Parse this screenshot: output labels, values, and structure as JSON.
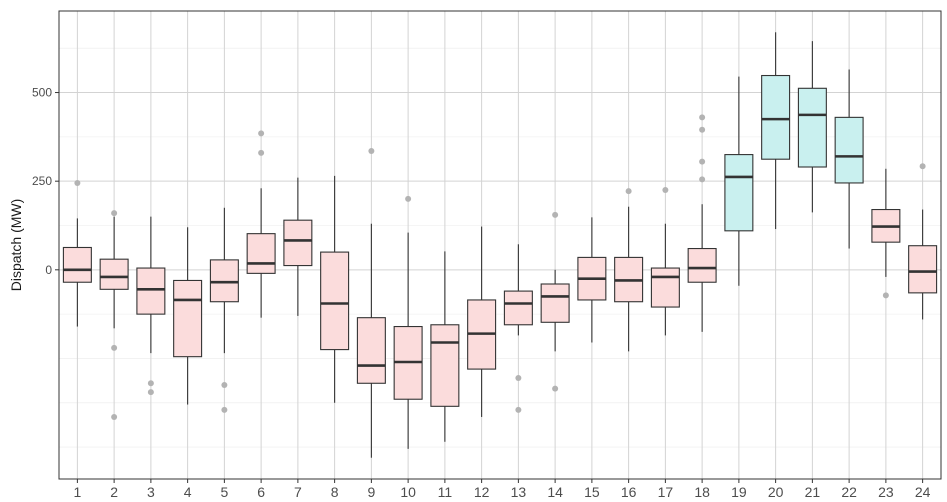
{
  "chart_data": {
    "type": "boxplot",
    "ylabel": "Dispatch (MW)",
    "xlabel": "",
    "ylim": [
      -590,
      730
    ],
    "y_ticks": [
      0,
      250,
      500
    ],
    "grid": true,
    "colors": {
      "low": "#fbdcdc",
      "high": "#c9f0ef",
      "median": "#333333",
      "outlier": "#b3b3b3",
      "panel_border": "#333333"
    },
    "categories": [
      "1",
      "2",
      "3",
      "4",
      "5",
      "6",
      "7",
      "8",
      "9",
      "10",
      "11",
      "12",
      "13",
      "14",
      "15",
      "16",
      "17",
      "18",
      "19",
      "20",
      "21",
      "22",
      "23",
      "24"
    ],
    "boxes": [
      {
        "x": "1",
        "whisker_low": -160,
        "q1": -35,
        "median": 0,
        "q3": 63,
        "whisker_high": 145,
        "outliers": [
          245
        ],
        "fill": "low"
      },
      {
        "x": "2",
        "whisker_low": -165,
        "q1": -55,
        "median": -20,
        "q3": 30,
        "whisker_high": 150,
        "outliers": [
          160,
          -220,
          -415
        ],
        "fill": "low"
      },
      {
        "x": "3",
        "whisker_low": -235,
        "q1": -125,
        "median": -55,
        "q3": 5,
        "whisker_high": 150,
        "outliers": [
          -320,
          -345
        ],
        "fill": "low"
      },
      {
        "x": "4",
        "whisker_low": -380,
        "q1": -245,
        "median": -85,
        "q3": -30,
        "whisker_high": 120,
        "outliers": [],
        "fill": "low"
      },
      {
        "x": "5",
        "whisker_low": -235,
        "q1": -90,
        "median": -35,
        "q3": 28,
        "whisker_high": 175,
        "outliers": [
          -325,
          -395
        ],
        "fill": "low"
      },
      {
        "x": "6",
        "whisker_low": -135,
        "q1": -10,
        "median": 18,
        "q3": 102,
        "whisker_high": 230,
        "outliers": [
          385,
          330
        ],
        "fill": "low"
      },
      {
        "x": "7",
        "whisker_low": -130,
        "q1": 12,
        "median": 83,
        "q3": 140,
        "whisker_high": 260,
        "outliers": [],
        "fill": "low"
      },
      {
        "x": "8",
        "whisker_low": -375,
        "q1": -225,
        "median": -95,
        "q3": 50,
        "whisker_high": 265,
        "outliers": [],
        "fill": "low"
      },
      {
        "x": "9",
        "whisker_low": -530,
        "q1": -320,
        "median": -270,
        "q3": -135,
        "whisker_high": 130,
        "outliers": [
          335
        ],
        "fill": "low"
      },
      {
        "x": "10",
        "whisker_low": -505,
        "q1": -365,
        "median": -260,
        "q3": -160,
        "whisker_high": 105,
        "outliers": [
          200
        ],
        "fill": "low"
      },
      {
        "x": "11",
        "whisker_low": -485,
        "q1": -385,
        "median": -205,
        "q3": -155,
        "whisker_high": 52,
        "outliers": [],
        "fill": "low"
      },
      {
        "x": "12",
        "whisker_low": -415,
        "q1": -280,
        "median": -180,
        "q3": -85,
        "whisker_high": 122,
        "outliers": [],
        "fill": "low"
      },
      {
        "x": "13",
        "whisker_low": -185,
        "q1": -155,
        "median": -95,
        "q3": -60,
        "whisker_high": 72,
        "outliers": [
          -305,
          -395
        ],
        "fill": "low"
      },
      {
        "x": "14",
        "whisker_low": -230,
        "q1": -148,
        "median": -75,
        "q3": -40,
        "whisker_high": 0,
        "outliers": [
          155,
          -335
        ],
        "fill": "low"
      },
      {
        "x": "15",
        "whisker_low": -205,
        "q1": -85,
        "median": -25,
        "q3": 35,
        "whisker_high": 148,
        "outliers": [],
        "fill": "low"
      },
      {
        "x": "16",
        "whisker_low": -230,
        "q1": -90,
        "median": -30,
        "q3": 35,
        "whisker_high": 178,
        "outliers": [
          222
        ],
        "fill": "low"
      },
      {
        "x": "17",
        "whisker_low": -185,
        "q1": -105,
        "median": -20,
        "q3": 5,
        "whisker_high": 130,
        "outliers": [
          225
        ],
        "fill": "low"
      },
      {
        "x": "18",
        "whisker_low": -175,
        "q1": -35,
        "median": 5,
        "q3": 60,
        "whisker_high": 185,
        "outliers": [
          430,
          395,
          305,
          255
        ],
        "fill": "low"
      },
      {
        "x": "19",
        "whisker_low": -45,
        "q1": 110,
        "median": 262,
        "q3": 325,
        "whisker_high": 545,
        "outliers": [],
        "fill": "high"
      },
      {
        "x": "20",
        "whisker_low": 115,
        "q1": 312,
        "median": 425,
        "q3": 548,
        "whisker_high": 670,
        "outliers": [],
        "fill": "high"
      },
      {
        "x": "21",
        "whisker_low": 162,
        "q1": 290,
        "median": 437,
        "q3": 512,
        "whisker_high": 645,
        "outliers": [],
        "fill": "high"
      },
      {
        "x": "22",
        "whisker_low": 60,
        "q1": 245,
        "median": 320,
        "q3": 430,
        "whisker_high": 565,
        "outliers": [],
        "fill": "high"
      },
      {
        "x": "23",
        "whisker_low": -20,
        "q1": 78,
        "median": 122,
        "q3": 170,
        "whisker_high": 285,
        "outliers": [
          -72
        ],
        "fill": "low"
      },
      {
        "x": "24",
        "whisker_low": -140,
        "q1": -65,
        "median": -5,
        "q3": 68,
        "whisker_high": 170,
        "outliers": [
          292
        ],
        "fill": "low"
      }
    ]
  }
}
